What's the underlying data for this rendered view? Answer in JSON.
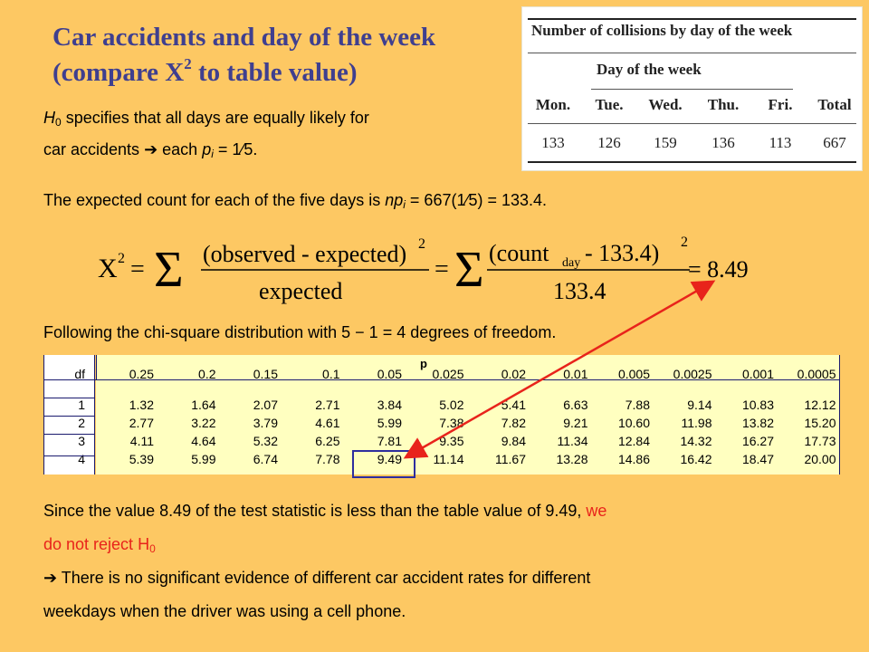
{
  "title": {
    "line1": "Car accidents and day of the week",
    "line2_pre": "(compare X",
    "line2_sup": "2",
    "line2_post": " to table value)"
  },
  "h0": {
    "h": "H",
    "sub": "0",
    "text1": " specifies that all days are equally likely for",
    "text2_pre": "car accidents ",
    "arrow": "➔",
    "text2_mid": " each ",
    "p": "p",
    "i": "i",
    "text2_post": " = 1⁄5."
  },
  "expected": {
    "pre": "The expected count for each of the five days is ",
    "np": "np",
    "i": "i",
    "post": " = 667(1⁄5) = 133.4."
  },
  "formula": {
    "lhs": "X",
    "lhs_sup": "2",
    "eq": "=",
    "sigma": "Σ",
    "num1": "(observed - expected)",
    "num1_sup": "2",
    "den1": "expected",
    "num2": "(count",
    "num2_sub": "day",
    "num2_rest": " - 133.4)",
    "num2_sup": "2",
    "den2": "133.4",
    "result": "= 8.49"
  },
  "following": "Following the chi-square distribution with 5 − 1 = 4 degrees of freedom.",
  "inset": {
    "caption": "Number of collisions by day of the week",
    "subcaption": "Day of the week",
    "headers": [
      "Mon.",
      "Tue.",
      "Wed.",
      "Thu.",
      "Fri.",
      "Total"
    ],
    "values": [
      "133",
      "126",
      "159",
      "136",
      "113",
      "667"
    ]
  },
  "chi_table": {
    "p_label": "p",
    "df_label": "df",
    "p_values": [
      "0.25",
      "0.2",
      "0.15",
      "0.1",
      "0.05",
      "0.025",
      "0.02",
      "0.01",
      "0.005",
      "0.0025",
      "0.001",
      "0.0005"
    ],
    "rows": [
      {
        "df": "1",
        "vals": [
          "1.32",
          "1.64",
          "2.07",
          "2.71",
          "3.84",
          "5.02",
          "5.41",
          "6.63",
          "7.88",
          "9.14",
          "10.83",
          "12.12"
        ]
      },
      {
        "df": "2",
        "vals": [
          "2.77",
          "3.22",
          "3.79",
          "4.61",
          "5.99",
          "7.38",
          "7.82",
          "9.21",
          "10.60",
          "11.98",
          "13.82",
          "15.20"
        ]
      },
      {
        "df": "3",
        "vals": [
          "4.11",
          "4.64",
          "5.32",
          "6.25",
          "7.81",
          "9.35",
          "9.84",
          "11.34",
          "12.84",
          "14.32",
          "16.27",
          "17.73"
        ]
      },
      {
        "df": "4",
        "vals": [
          "5.39",
          "5.99",
          "6.74",
          "7.78",
          "9.49",
          "11.14",
          "11.67",
          "13.28",
          "14.86",
          "16.42",
          "18.47",
          "20.00"
        ]
      }
    ]
  },
  "conclusion": {
    "pre": "Since the value 8.49 of the test statistic is less than the table value of 9.49, ",
    "red1": "we",
    "red2": "do not reject H",
    "red2_sub": "0",
    "arrow": "➔",
    "line3": " There is no significant evidence of different car accident rates for different",
    "line4": "weekdays when the driver was using a cell phone."
  },
  "colors": {
    "background": "#fdc863",
    "title": "#3f3f8f",
    "accent_red": "#e8231b",
    "highlight_box": "#2e2e9e"
  }
}
